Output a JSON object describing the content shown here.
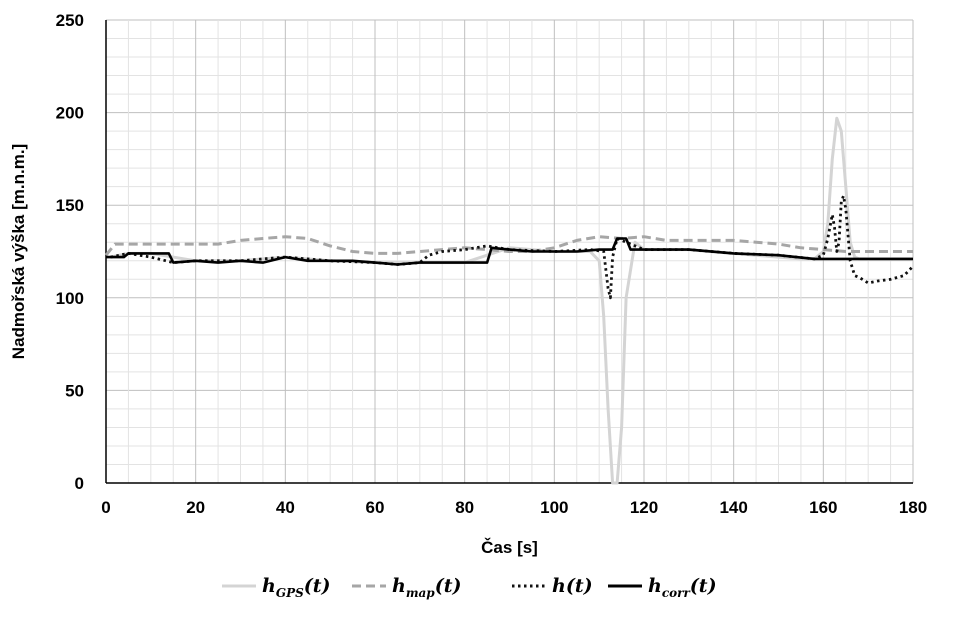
{
  "chart_data": {
    "type": "line",
    "xlabel": "Čas [s]",
    "ylabel": "Nadmořská výška [m.n.m.]",
    "xlim": [
      0,
      180
    ],
    "ylim": [
      0,
      250
    ],
    "x_ticks": [
      "0",
      "20",
      "40",
      "60",
      "80",
      "100",
      "120",
      "140",
      "160",
      "180"
    ],
    "y_ticks": [
      "0",
      "50",
      "100",
      "150",
      "200",
      "250"
    ],
    "grid": true,
    "legend_position": "bottom",
    "series": [
      {
        "name": "h_GPS(t)",
        "label_main": "h",
        "label_sub": "GPS",
        "label_tail": "(t)",
        "color": "#d4d4d4",
        "style": "solid",
        "x": [
          1,
          3,
          5,
          10,
          20,
          30,
          40,
          50,
          60,
          70,
          80,
          90,
          100,
          108,
          110,
          111,
          112,
          113,
          114,
          115,
          116,
          118,
          120,
          130,
          140,
          150,
          155,
          158,
          160,
          161,
          162,
          163,
          164,
          165,
          166,
          167,
          168,
          170,
          175,
          180
        ],
        "y": [
          122,
          123,
          124,
          124,
          120,
          120,
          122,
          120,
          119,
          119,
          119,
          127,
          125,
          125,
          120,
          90,
          40,
          0,
          0,
          30,
          100,
          130,
          126,
          126,
          124,
          122,
          121,
          121,
          125,
          140,
          175,
          197,
          190,
          160,
          130,
          122,
          121,
          121,
          121,
          121
        ]
      },
      {
        "name": "h_map(t)",
        "label_main": "h",
        "label_sub": "map",
        "label_tail": "(t)",
        "color": "#a6a6a6",
        "style": "dashed",
        "x": [
          0,
          2,
          5,
          10,
          20,
          25,
          30,
          35,
          40,
          45,
          50,
          55,
          60,
          65,
          70,
          75,
          80,
          85,
          90,
          95,
          100,
          105,
          110,
          115,
          120,
          125,
          130,
          135,
          140,
          145,
          150,
          155,
          160,
          165,
          170,
          175,
          180
        ],
        "y": [
          123,
          129,
          129,
          129,
          129,
          129,
          131,
          132,
          133,
          132,
          128,
          125,
          124,
          124,
          125,
          126,
          127,
          126,
          125,
          125,
          127,
          131,
          133,
          132,
          133,
          131,
          131,
          131,
          131,
          130,
          129,
          127,
          126,
          125,
          125,
          125,
          125
        ]
      },
      {
        "name": "h(t)",
        "label_main": "h",
        "label_sub": "",
        "label_tail": "(t)",
        "color": "#111111",
        "style": "dotted",
        "x": [
          1,
          5,
          10,
          15,
          20,
          30,
          40,
          50,
          60,
          65,
          70,
          72,
          75,
          80,
          85,
          90,
          100,
          108,
          111,
          112,
          112.5,
          113,
          114,
          116,
          120,
          130,
          140,
          150,
          158,
          160,
          161,
          162,
          162.5,
          163,
          163.5,
          164,
          164.5,
          165,
          166,
          167,
          168,
          170,
          172,
          175,
          178,
          180
        ],
        "y": [
          122,
          124,
          122,
          119,
          120,
          120,
          122,
          120,
          119,
          118,
          119,
          123,
          125,
          126,
          128,
          126,
          125,
          126,
          125,
          105,
          100,
          122,
          132,
          130,
          126,
          126,
          124,
          123,
          121,
          123,
          132,
          145,
          138,
          125,
          130,
          152,
          155,
          148,
          120,
          112,
          111,
          108,
          109,
          110,
          112,
          117
        ]
      },
      {
        "name": "h_corr(t)",
        "label_main": "h",
        "label_sub": "corr",
        "label_tail": "(t)",
        "color": "#000000",
        "style": "solid",
        "x": [
          0,
          4,
          5,
          14,
          15,
          20,
          25,
          30,
          35,
          40,
          45,
          50,
          55,
          60,
          65,
          70,
          75,
          80,
          85,
          86,
          90,
          95,
          100,
          105,
          110,
          113,
          114,
          116,
          117,
          120,
          130,
          140,
          150,
          158,
          160,
          165,
          170,
          175,
          180
        ],
        "y": [
          122,
          122,
          124,
          124,
          119,
          120,
          119,
          120,
          119,
          122,
          120,
          120,
          120,
          119,
          118,
          119,
          119,
          119,
          119,
          127,
          126,
          125,
          125,
          125,
          126,
          126,
          132,
          132,
          126,
          126,
          126,
          124,
          123,
          121,
          121,
          121,
          121,
          121,
          121
        ]
      }
    ]
  }
}
